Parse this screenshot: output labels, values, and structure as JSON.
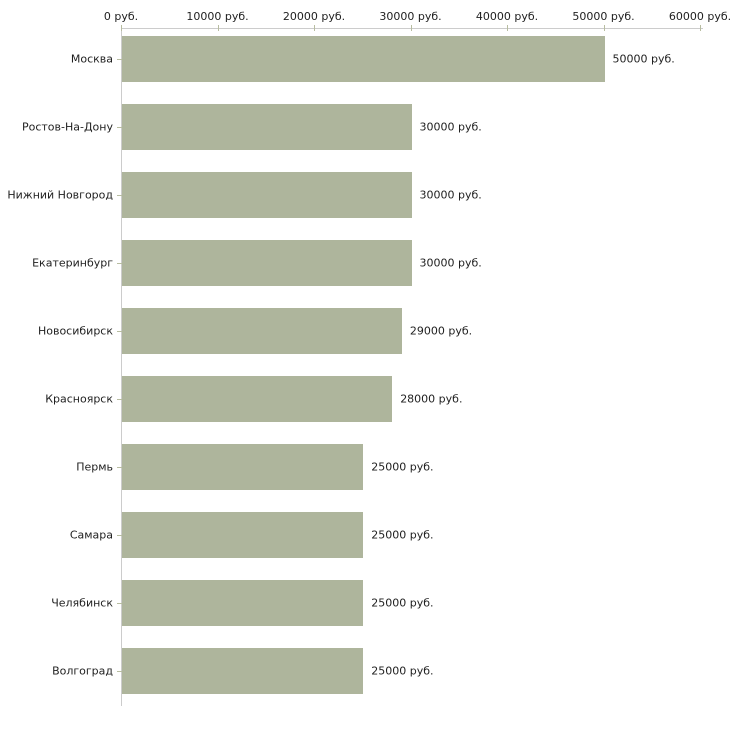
{
  "chart_data": {
    "type": "bar",
    "orientation": "horizontal",
    "title": "",
    "xlabel": "",
    "ylabel": "",
    "categories": [
      "Москва",
      "Ростов-На-Дону",
      "Нижний Новгород",
      "Екатеринбург",
      "Новосибирск",
      "Красноярск",
      "Пермь",
      "Самара",
      "Челябинск",
      "Волгоград"
    ],
    "values": [
      50000,
      30000,
      30000,
      30000,
      29000,
      28000,
      25000,
      25000,
      25000,
      25000
    ],
    "value_labels": [
      "50000 руб.",
      "30000 руб.",
      "30000 руб.",
      "30000 руб.",
      "29000 руб.",
      "28000 руб.",
      "25000 руб.",
      "25000 руб.",
      "25000 руб.",
      "25000 руб."
    ],
    "xlim": [
      0,
      60000
    ],
    "x_ticks": [
      {
        "value": 0,
        "label": "0 руб."
      },
      {
        "value": 10000,
        "label": "10000 руб."
      },
      {
        "value": 20000,
        "label": "20000 руб."
      },
      {
        "value": 30000,
        "label": "30000 руб."
      },
      {
        "value": 40000,
        "label": "40000 руб."
      },
      {
        "value": 50000,
        "label": "50000 руб."
      },
      {
        "value": 60000,
        "label": "60000 руб."
      }
    ],
    "grid": false,
    "legend": "none",
    "colors": {
      "bar": "#aeb59c",
      "axis_line": "#cccccc",
      "tick_mark": "#b8bda1",
      "text": "#1f1f1f",
      "background": "#ffffff"
    }
  }
}
